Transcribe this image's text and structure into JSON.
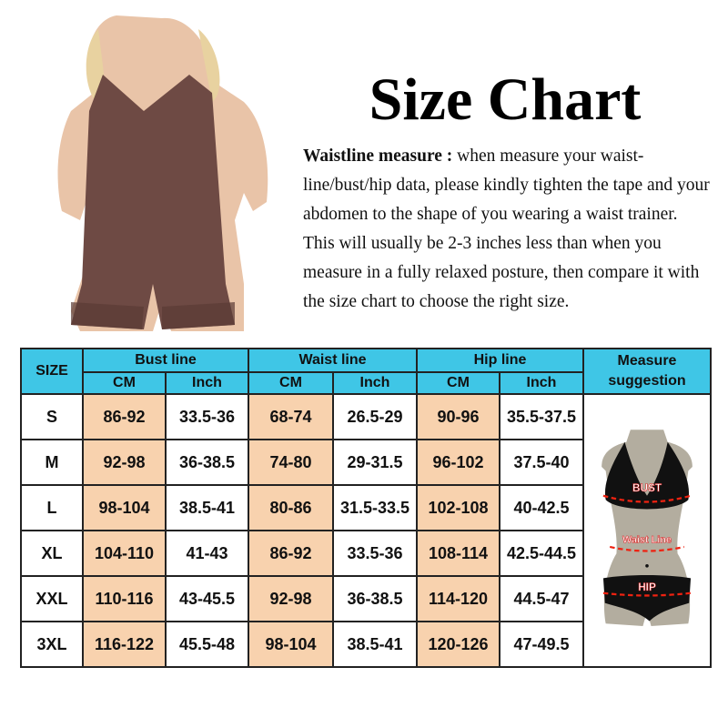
{
  "title": "Size Chart",
  "description": {
    "label": "Waistline measure :",
    "text": " when measure your waist-line/bust/hip data, please kindly tighten the tape and your abdomen to the shape of you wearing a waist trainer. This will usually be 2-3 inches less than when you measure in a fully relaxed posture, then compare it with the size chart to choose the right size."
  },
  "colors": {
    "header": "#3fc6e6",
    "cm_cell": "#f8d2ae",
    "garment": "#6e4a44"
  },
  "table": {
    "size_header": "SIZE",
    "groups": [
      "Bust line",
      "Waist line",
      "Hip line"
    ],
    "sub": {
      "cm": "CM",
      "inch": "Inch"
    },
    "measure_header": "Measure suggestion",
    "rows": [
      {
        "size": "S",
        "bust_cm": "86-92",
        "bust_in": "33.5-36",
        "waist_cm": "68-74",
        "waist_in": "26.5-29",
        "hip_cm": "90-96",
        "hip_in": "35.5-37.5"
      },
      {
        "size": "M",
        "bust_cm": "92-98",
        "bust_in": "36-38.5",
        "waist_cm": "74-80",
        "waist_in": "29-31.5",
        "hip_cm": "96-102",
        "hip_in": "37.5-40"
      },
      {
        "size": "L",
        "bust_cm": "98-104",
        "bust_in": "38.5-41",
        "waist_cm": "80-86",
        "waist_in": "31.5-33.5",
        "hip_cm": "102-108",
        "hip_in": "40-42.5"
      },
      {
        "size": "XL",
        "bust_cm": "104-110",
        "bust_in": "41-43",
        "waist_cm": "86-92",
        "waist_in": "33.5-36",
        "hip_cm": "108-114",
        "hip_in": "42.5-44.5"
      },
      {
        "size": "XXL",
        "bust_cm": "110-116",
        "bust_in": "43-45.5",
        "waist_cm": "92-98",
        "waist_in": "36-38.5",
        "hip_cm": "114-120",
        "hip_in": "44.5-47"
      },
      {
        "size": "3XL",
        "bust_cm": "116-122",
        "bust_in": "45.5-48",
        "waist_cm": "98-104",
        "waist_in": "38.5-41",
        "hip_cm": "120-126",
        "hip_in": "47-49.5"
      }
    ]
  },
  "figure_labels": {
    "bust": "BUST",
    "waist": "Waist Line",
    "hip": "HIP"
  }
}
